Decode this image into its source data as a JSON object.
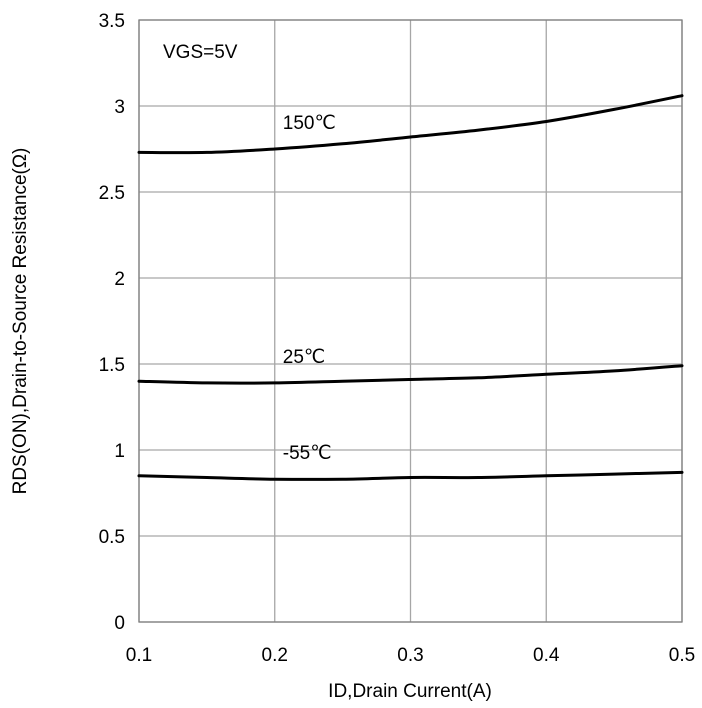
{
  "chart_data": {
    "type": "line",
    "xlabel": "ID,Drain Current(A)",
    "ylabel": "RDS(ON),Drain-to-Source Resistance(Ω)",
    "xlim": [
      0.1,
      0.5
    ],
    "ylim": [
      0,
      3.5
    ],
    "xticks": [
      "0.1",
      "0.2",
      "0.3",
      "0.4",
      "0.5"
    ],
    "yticks": [
      "0",
      "0.5",
      "1",
      "1.5",
      "2",
      "2.5",
      "3",
      "3.5"
    ],
    "grid": true,
    "annotation": "VGS=5V",
    "series": [
      {
        "name": "150℃",
        "x": [
          0.1,
          0.15,
          0.2,
          0.25,
          0.3,
          0.35,
          0.4,
          0.45,
          0.5
        ],
        "y": [
          2.73,
          2.73,
          2.75,
          2.78,
          2.82,
          2.86,
          2.91,
          2.98,
          3.06
        ]
      },
      {
        "name": "25℃",
        "x": [
          0.1,
          0.15,
          0.2,
          0.25,
          0.3,
          0.35,
          0.4,
          0.45,
          0.5
        ],
        "y": [
          1.4,
          1.39,
          1.39,
          1.4,
          1.41,
          1.42,
          1.44,
          1.46,
          1.49
        ]
      },
      {
        "name": "-55℃",
        "x": [
          0.1,
          0.15,
          0.2,
          0.25,
          0.3,
          0.35,
          0.4,
          0.45,
          0.5
        ],
        "y": [
          0.85,
          0.84,
          0.83,
          0.83,
          0.84,
          0.84,
          0.85,
          0.86,
          0.87
        ]
      }
    ]
  }
}
